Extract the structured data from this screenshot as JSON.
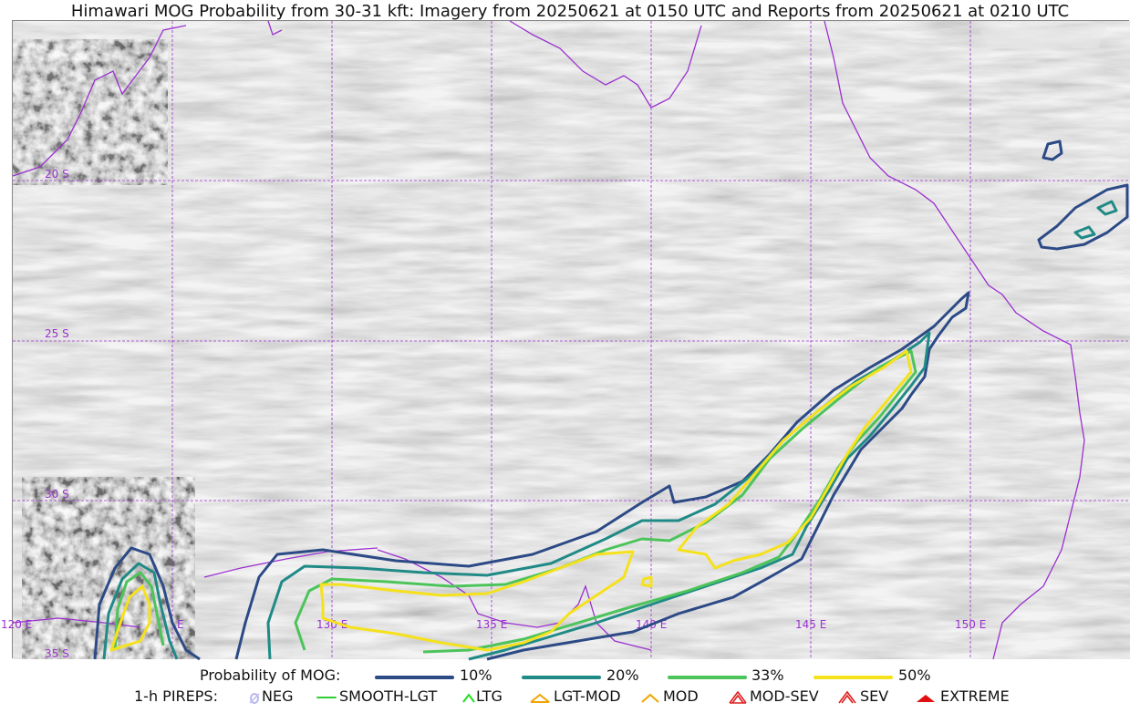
{
  "title": "Himawari MOG Probability from 30-31 kft: Imagery from 20250621 at 0150 UTC and Reports from 20250621 at 0210 UTC",
  "map": {
    "grid_labels": {
      "lat_20s": "20 S",
      "lat_25s": "25 S",
      "lat_30s": "30 S",
      "lat_35s": "35 S",
      "lon_120e": "120 E",
      "lon_125e": "E",
      "lon_130e": "130 E",
      "lon_135e": "135 E",
      "lon_140e": "140 E",
      "lon_145e": "145 E",
      "lon_150e": "150 E"
    },
    "colors": {
      "coast": "#9b30d0",
      "grid": "#9b30d0",
      "background": "#b4b4b4",
      "p10": "#2c4a86",
      "p20": "#1f8a86",
      "p33": "#4cc45a",
      "p50": "#f5e11c"
    }
  },
  "legend": {
    "probability_label": "Probability of MOG:",
    "levels": [
      {
        "label": "10%",
        "color": "#2c4a86"
      },
      {
        "label": "20%",
        "color": "#1f8a86"
      },
      {
        "label": "33%",
        "color": "#4cc45a"
      },
      {
        "label": "50%",
        "color": "#f5e11c"
      }
    ],
    "pireps_label": "1-h PIREPS:",
    "pireps": [
      {
        "label": "NEG",
        "color": "#b9b9f0",
        "icon": "neg-icon"
      },
      {
        "label": "SMOOTH-LGT",
        "color": "#33cc33",
        "icon": "smooth-lgt-line-icon"
      },
      {
        "label": "LTG",
        "color": "#22dd22",
        "icon": "ltg-caret-icon"
      },
      {
        "label": "LGT-MOD",
        "color": "#f0a500",
        "icon": "lgt-mod-caret-icon"
      },
      {
        "label": "MOD",
        "color": "#f0a500",
        "icon": "mod-caret-icon"
      },
      {
        "label": "MOD-SEV",
        "color": "#e02020",
        "icon": "mod-sev-caret-icon"
      },
      {
        "label": "SEV",
        "color": "#e02020",
        "icon": "sev-caret-icon"
      },
      {
        "label": "EXTREME",
        "color": "#e01010",
        "icon": "extreme-caret-icon"
      }
    ]
  }
}
